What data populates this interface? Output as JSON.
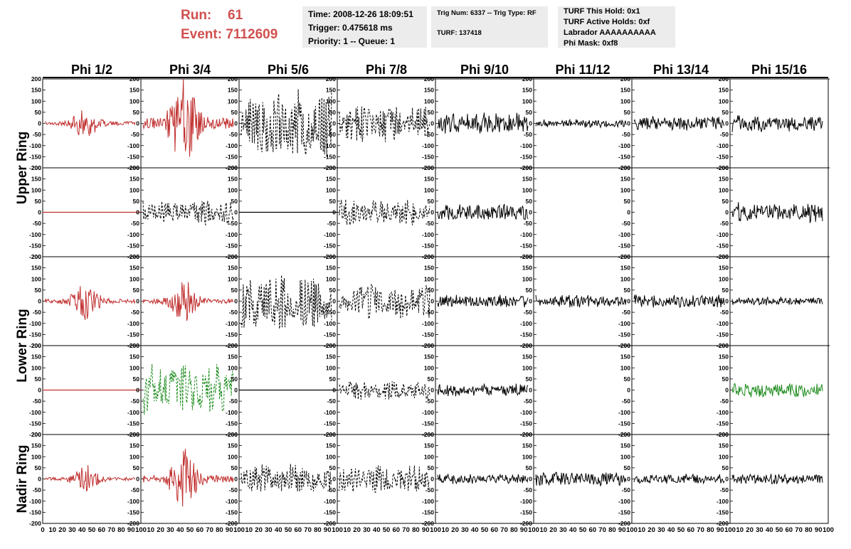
{
  "header": {
    "run_label": "Run:",
    "run_value": "61",
    "event_label": "Event:",
    "event_value": "7112609",
    "time": "Time: 2008-12-26 18:09:51",
    "trigger": "Trigger: 0.475618 ms",
    "priority": "Priority: 1 -- Queue: 1",
    "trig_num": "Trig Num: 6337 -- Trig Type: RF",
    "turf": "TURF: 137418",
    "turf_hold": "TURF This Hold: 0x1",
    "turf_active": "TURF Active Holds: 0xf",
    "labrador": "Labrador AAAAAAAAAA",
    "phi_mask": "Phi Mask: 0xf8"
  },
  "colors": {
    "red": "#c0302f",
    "green": "#1a8a1a",
    "black": "#000000",
    "header_red": "#d0504e",
    "panel_bg": "#ececec"
  },
  "chart_data": {
    "type": "line",
    "columns": [
      "Phi 1/2",
      "Phi 3/4",
      "Phi 5/6",
      "Phi 7/8",
      "Phi 9/10",
      "Phi 11/12",
      "Phi 13/14",
      "Phi 15/16"
    ],
    "row_groups": [
      "Upper Ring",
      "Lower Ring",
      "Nadir Ring"
    ],
    "ylim": [
      -200,
      200
    ],
    "y_ticks": [
      -200,
      -150,
      -100,
      -50,
      0,
      50,
      100,
      150,
      200
    ],
    "xlim": [
      0,
      100
    ],
    "x_ticks": [
      0,
      10,
      20,
      30,
      40,
      50,
      60,
      70,
      80,
      90,
      100
    ],
    "panels": [
      [
        "red-pulse:70",
        "red-pulse:200",
        "black-dashed:170",
        "black-dashed:90",
        "black-solid:50",
        "black-solid:20",
        "black-solid:35",
        "black-solid:40"
      ],
      [
        "flat:red",
        "black-dashed:60",
        "flat:black",
        "black-dashed:60",
        "black-solid:40",
        "none",
        "none",
        "black-solid:50"
      ],
      [
        "red-pulse:80",
        "red-pulse:90",
        "black-dashed:130",
        "black-dashed:80",
        "black-solid:30",
        "black-solid:30",
        "black-solid:30",
        "black-solid:20"
      ],
      [
        "flat:red",
        "green-dashed:120",
        "flat:black",
        "black-dashed:45",
        "black-solid:30",
        "none",
        "none",
        "green-solid:35"
      ],
      [
        "red-pulse:60",
        "red-pulse:130",
        "black-dashed:70",
        "black-dashed:65",
        "black-solid:25",
        "black-solid:35",
        "black-solid:25",
        "black-solid:25"
      ]
    ]
  }
}
